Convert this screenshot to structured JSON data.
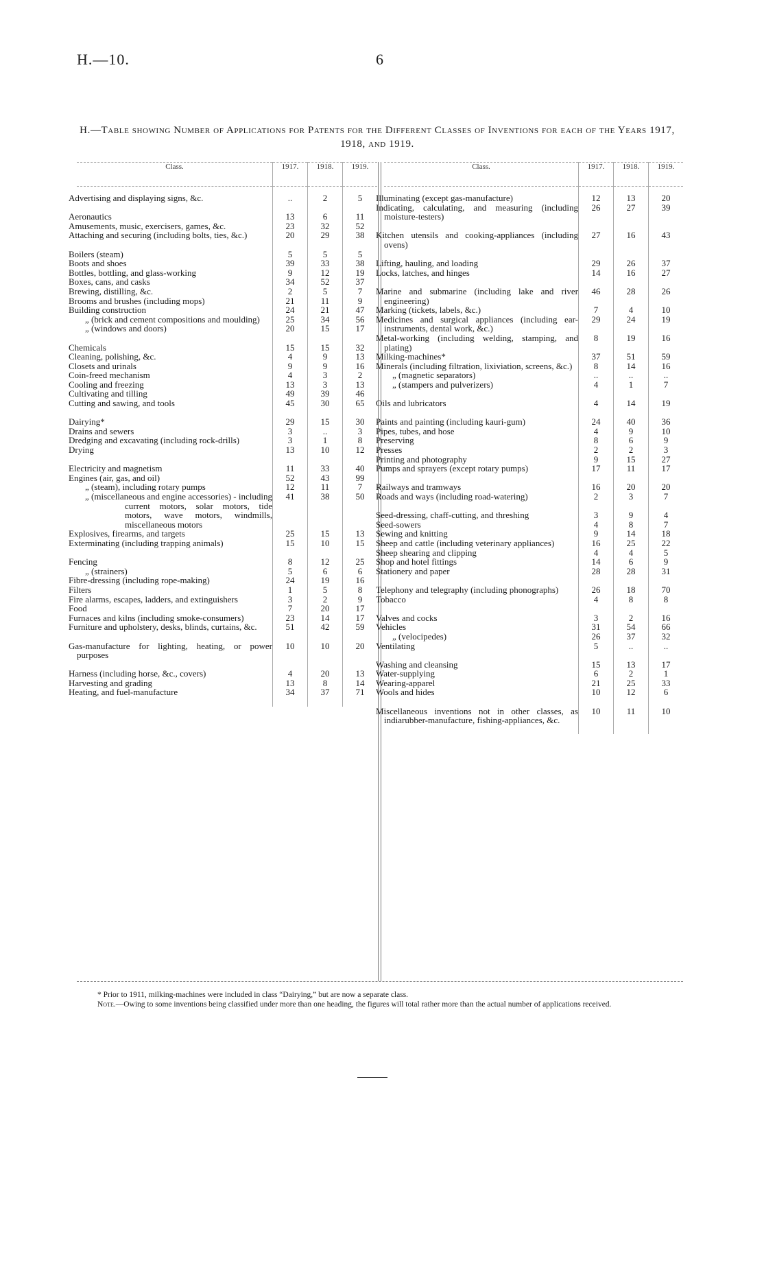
{
  "header": {
    "ref": "H.—10.",
    "page": "6"
  },
  "title": "H.—Table showing Number of Applications for Patents for the Different Classes of Inventions for each of the Years 1917, 1918, and 1919.",
  "columns": {
    "class": "Class.",
    "years": [
      "1917.",
      "1918.",
      "1919."
    ]
  },
  "left": [
    [
      [
        "Advertising and displaying signs, &c.",
        "..",
        "2",
        "5"
      ]
    ],
    [
      [
        "Aeronautics",
        "13",
        "6",
        "11"
      ],
      [
        "Amusements, music, exercisers, games, &c.",
        "23",
        "32",
        "52"
      ],
      [
        "Attaching and securing (including bolts, ties, &c.)",
        "20",
        "29",
        "38"
      ]
    ],
    [
      [
        "Boilers (steam)",
        "5",
        "5",
        "5"
      ],
      [
        "Boots and shoes",
        "39",
        "33",
        "38"
      ],
      [
        "Bottles, bottling, and glass-working",
        "9",
        "12",
        "19"
      ],
      [
        "Boxes, cans, and casks",
        "34",
        "52",
        "37"
      ],
      [
        "Brewing, distilling, &c.",
        "2",
        "5",
        "7"
      ],
      [
        "Brooms and brushes (including mops)",
        "21",
        "11",
        "9"
      ],
      [
        "Building construction",
        "24",
        "21",
        "47"
      ],
      [
        "„ (brick and cement compositions and moulding)",
        "25",
        "34",
        "56"
      ],
      [
        "„ (windows and doors)",
        "20",
        "15",
        "17"
      ]
    ],
    [
      [
        "Chemicals",
        "15",
        "15",
        "32"
      ],
      [
        "Cleaning, polishing, &c.",
        "4",
        "9",
        "13"
      ],
      [
        "Closets and urinals",
        "9",
        "9",
        "16"
      ],
      [
        "Coin-freed mechanism",
        "4",
        "3",
        "2"
      ],
      [
        "Cooling and freezing",
        "13",
        "3",
        "13"
      ],
      [
        "Cultivating and tilling",
        "49",
        "39",
        "46"
      ],
      [
        "Cutting and sawing, and tools",
        "45",
        "30",
        "65"
      ]
    ],
    [
      [
        "Dairying*",
        "29",
        "15",
        "30"
      ],
      [
        "Drains and sewers",
        "3",
        "..",
        "3"
      ],
      [
        "Dredging and excavating (including rock-drills)",
        "3",
        "1",
        "8"
      ],
      [
        "Drying",
        "13",
        "10",
        "12"
      ]
    ],
    [
      [
        "Electricity and magnetism",
        "11",
        "33",
        "40"
      ],
      [
        "Engines (air, gas, and oil)",
        "52",
        "43",
        "99"
      ],
      [
        "„ (steam), including rotary pumps",
        "12",
        "11",
        "7"
      ],
      [
        "„ (miscellaneous and engine accessories) - including current motors, solar motors, tide motors, wave motors, windmills, miscellaneous motors",
        "41",
        "38",
        "50"
      ],
      [
        "Explosives, firearms, and targets",
        "25",
        "15",
        "13"
      ],
      [
        "Exterminating (including trapping animals)",
        "15",
        "10",
        "15"
      ]
    ],
    [
      [
        "Fencing",
        "8",
        "12",
        "25"
      ],
      [
        "„ (strainers)",
        "5",
        "6",
        "6"
      ],
      [
        "Fibre-dressing (including rope-making)",
        "24",
        "19",
        "16"
      ],
      [
        "Filters",
        "1",
        "5",
        "8"
      ],
      [
        "Fire alarms, escapes, ladders, and extinguishers",
        "3",
        "2",
        "9"
      ],
      [
        "Food",
        "7",
        "20",
        "17"
      ],
      [
        "Furnaces and kilns (including smoke-consumers)",
        "23",
        "14",
        "17"
      ],
      [
        "Furniture and upholstery, desks, blinds, curtains, &c.",
        "51",
        "42",
        "59"
      ]
    ],
    [
      [
        "Gas-manufacture for lighting, heating, or power purposes",
        "10",
        "10",
        "20"
      ]
    ],
    [
      [
        "Harness (including horse, &c., covers)",
        "4",
        "20",
        "13"
      ],
      [
        "Harvesting and grading",
        "13",
        "8",
        "14"
      ],
      [
        "Heating, and fuel-manufacture",
        "34",
        "37",
        "71"
      ]
    ]
  ],
  "right": [
    [
      [
        "Illuminating (except gas-manufacture)",
        "12",
        "13",
        "20"
      ],
      [
        "Indicating, calculating, and measuring (including moisture-testers)",
        "26",
        "27",
        "39"
      ]
    ],
    [
      [
        "Kitchen utensils and cooking-appliances (including ovens)",
        "27",
        "16",
        "43"
      ]
    ],
    [
      [
        "Lifting, hauling, and loading",
        "29",
        "26",
        "37"
      ],
      [
        "Locks, latches, and hinges",
        "14",
        "16",
        "27"
      ]
    ],
    [
      [
        "Marine and submarine (including lake and river engineering)",
        "46",
        "28",
        "26"
      ],
      [
        "Marking (tickets, labels, &c.)",
        "7",
        "4",
        "10"
      ],
      [
        "Medicines and surgical appliances (including ear-instruments, dental work, &c.)",
        "29",
        "24",
        "19"
      ],
      [
        "Metal-working (including welding, stamping, and plating)",
        "8",
        "19",
        "16"
      ],
      [
        "Milking-machines*",
        "37",
        "51",
        "59"
      ],
      [
        "Minerals (including filtration, lixiviation, screens, &c.)",
        "8",
        "14",
        "16"
      ],
      [
        "„ (magnetic separators)",
        "..",
        "..",
        ".."
      ],
      [
        "„ (stampers and pulverizers)",
        "4",
        "1",
        "7"
      ]
    ],
    [
      [
        "Oils and lubricators",
        "4",
        "14",
        "19"
      ]
    ],
    [
      [
        "Paints and painting (including kauri-gum)",
        "24",
        "40",
        "36"
      ],
      [
        "Pipes, tubes, and hose",
        "4",
        "9",
        "10"
      ],
      [
        "Preserving",
        "8",
        "6",
        "9"
      ],
      [
        "Presses",
        "2",
        "2",
        "3"
      ],
      [
        "Printing and photography",
        "9",
        "15",
        "27"
      ],
      [
        "Pumps and sprayers (except rotary pumps)",
        "17",
        "11",
        "17"
      ]
    ],
    [
      [
        "Railways and tramways",
        "16",
        "20",
        "20"
      ],
      [
        "Roads and ways (including road-watering)",
        "2",
        "3",
        "7"
      ]
    ],
    [
      [
        "Seed-dressing, chaff-cutting, and threshing",
        "3",
        "9",
        "4"
      ],
      [
        "Seed-sowers",
        "4",
        "8",
        "7"
      ],
      [
        "Sewing and knitting",
        "9",
        "14",
        "18"
      ],
      [
        "Sheep and cattle (including veterinary appliances)",
        "16",
        "25",
        "22"
      ],
      [
        "Sheep shearing and clipping",
        "4",
        "4",
        "5"
      ],
      [
        "Shop and hotel fittings",
        "14",
        "6",
        "9"
      ],
      [
        "Stationery and paper",
        "28",
        "28",
        "31"
      ]
    ],
    [
      [
        "Telephony and telegraphy (including phonographs)",
        "26",
        "18",
        "70"
      ],
      [
        "Tobacco",
        "4",
        "8",
        "8"
      ]
    ],
    [
      [
        "Valves and cocks",
        "3",
        "2",
        "16"
      ],
      [
        "Vehicles",
        "31",
        "54",
        "66"
      ],
      [
        "„ (velocipedes)",
        "26",
        "37",
        "32"
      ],
      [
        "Ventilating",
        "5",
        "..",
        ".."
      ]
    ],
    [
      [
        "Washing and cleansing",
        "15",
        "13",
        "17"
      ],
      [
        "Water-supplying",
        "6",
        "2",
        "1"
      ],
      [
        "Wearing-apparel",
        "21",
        "25",
        "33"
      ],
      [
        "Wools and hides",
        "10",
        "12",
        "6"
      ]
    ],
    [
      [
        "Miscellaneous inventions not in other classes, as indiarubber-manufacture, fishing-appliances, &c.",
        "10",
        "11",
        "10"
      ]
    ]
  ],
  "footnotes": {
    "star": "* Prior to 1911, milking-machines were included in class “Dairying,” but are now a separate class.",
    "note_label": "Note.",
    "note": "—Owing to some inventions being classified under more than one heading, the figures will total rather more than the actual number of applications received."
  }
}
